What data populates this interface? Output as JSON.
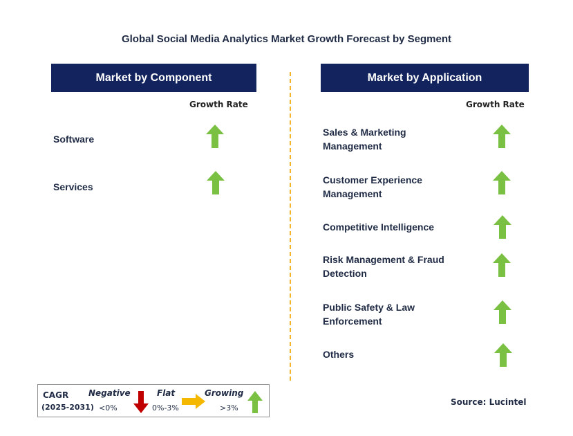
{
  "title": "Global Social Media Analytics Market Growth Forecast by Segment",
  "left_panel": {
    "header": "Market by Component",
    "growth_header": "Growth Rate",
    "rows": [
      {
        "label": "Software",
        "trend": "growing"
      },
      {
        "label": "Services",
        "trend": "growing"
      }
    ]
  },
  "right_panel": {
    "header": "Market by Application",
    "growth_header": "Growth Rate",
    "rows": [
      {
        "label_line1": "Sales & Marketing",
        "label_line2": "Management",
        "trend": "growing"
      },
      {
        "label_line1": "Customer Experience",
        "label_line2": "Management",
        "trend": "growing"
      },
      {
        "label_line1": "Competitive Intelligence",
        "label_line2": "",
        "trend": "growing"
      },
      {
        "label_line1": "Risk Management & Fraud",
        "label_line2": "Detection",
        "trend": "growing"
      },
      {
        "label_line1": "Public Safety & Law",
        "label_line2": "Enforcement",
        "trend": "growing"
      },
      {
        "label_line1": "Others",
        "label_line2": "",
        "trend": "growing"
      }
    ]
  },
  "legend": {
    "cagr_label": "CAGR",
    "period": "(2025-2031)",
    "negative_label": "Negative",
    "negative_range": "<0%",
    "flat_label": "Flat",
    "flat_range": "0%-3%",
    "growing_label": "Growing",
    "growing_range": ">3%"
  },
  "source": "Source: Lucintel",
  "colors": {
    "header_bg": "#12235e",
    "growing": "#7ac143",
    "negative": "#c00000",
    "flat": "#f5b800",
    "divider": "#f3b62a"
  },
  "icons": {
    "growing": "up-arrow-green-icon",
    "negative": "down-arrow-red-icon",
    "flat": "right-arrow-yellow-icon"
  }
}
